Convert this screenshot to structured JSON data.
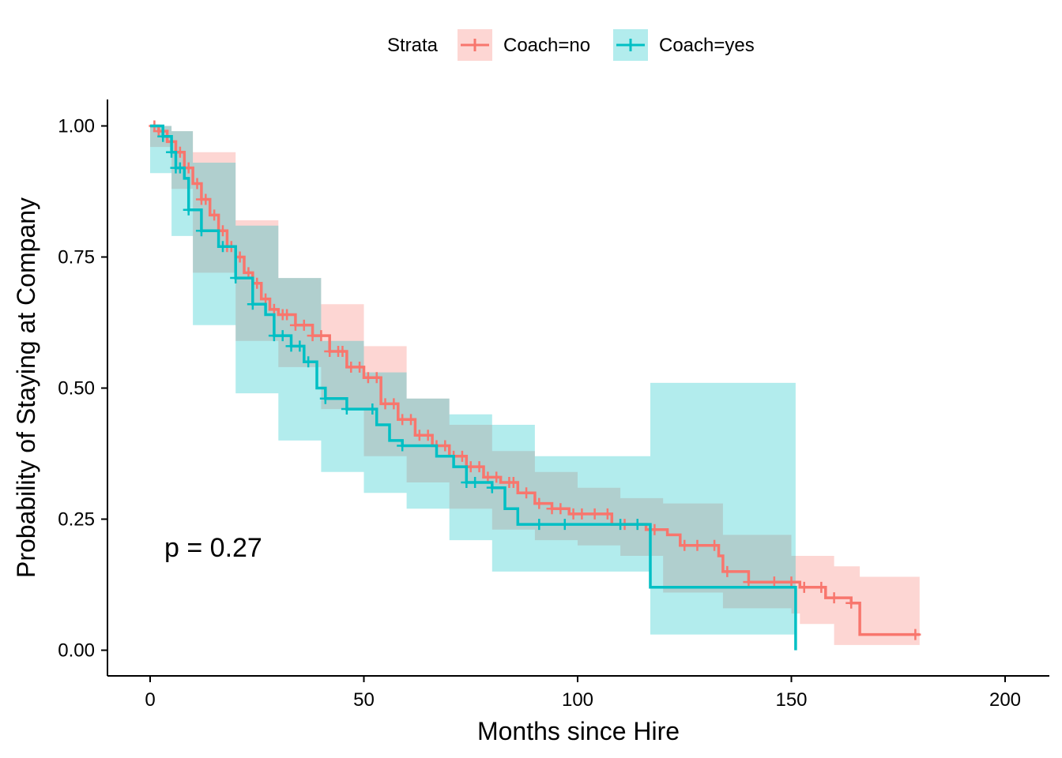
{
  "chart_data": {
    "type": "line",
    "xlabel": "Months since Hire",
    "ylabel": "Probability of Staying at Company",
    "xlim": [
      -10,
      210
    ],
    "ylim": [
      -0.05,
      1.05
    ],
    "x_ticks": [
      0,
      50,
      100,
      150,
      200
    ],
    "x_tick_labels": [
      "0",
      "50",
      "100",
      "150",
      "200"
    ],
    "y_ticks": [
      0,
      0.25,
      0.5,
      0.75,
      1
    ],
    "y_tick_labels": [
      "0.00",
      "0.25",
      "0.50",
      "0.75",
      "1.00"
    ],
    "grid": false,
    "legend": {
      "title": "Strata",
      "position": "top"
    },
    "annotation": "p = 0.27",
    "series": [
      {
        "name": "Coach=no",
        "color": "#F8766D",
        "band_color": "#F8766D",
        "steps": [
          [
            0,
            1.0
          ],
          [
            2,
            0.99
          ],
          [
            4,
            0.97
          ],
          [
            6,
            0.95
          ],
          [
            8,
            0.92
          ],
          [
            10,
            0.89
          ],
          [
            12,
            0.86
          ],
          [
            14,
            0.83
          ],
          [
            16,
            0.8
          ],
          [
            18,
            0.77
          ],
          [
            20,
            0.75
          ],
          [
            22,
            0.72
          ],
          [
            24,
            0.7
          ],
          [
            26,
            0.67
          ],
          [
            28,
            0.65
          ],
          [
            30,
            0.64
          ],
          [
            34,
            0.62
          ],
          [
            38,
            0.6
          ],
          [
            42,
            0.57
          ],
          [
            46,
            0.54
          ],
          [
            50,
            0.52
          ],
          [
            54,
            0.47
          ],
          [
            58,
            0.44
          ],
          [
            62,
            0.41
          ],
          [
            66,
            0.39
          ],
          [
            70,
            0.37
          ],
          [
            74,
            0.35
          ],
          [
            78,
            0.33
          ],
          [
            82,
            0.32
          ],
          [
            86,
            0.3
          ],
          [
            90,
            0.28
          ],
          [
            94,
            0.27
          ],
          [
            98,
            0.26
          ],
          [
            108,
            0.24
          ],
          [
            116,
            0.23
          ],
          [
            121,
            0.22
          ],
          [
            124,
            0.2
          ],
          [
            133,
            0.18
          ],
          [
            134,
            0.15
          ],
          [
            140,
            0.13
          ],
          [
            152,
            0.12
          ],
          [
            158,
            0.1
          ],
          [
            164,
            0.09
          ],
          [
            166,
            0.03
          ],
          [
            180,
            0.03
          ]
        ],
        "upper": [
          [
            0,
            1.0
          ],
          [
            5,
            0.99
          ],
          [
            10,
            0.95
          ],
          [
            20,
            0.82
          ],
          [
            30,
            0.71
          ],
          [
            40,
            0.66
          ],
          [
            50,
            0.58
          ],
          [
            60,
            0.48
          ],
          [
            70,
            0.43
          ],
          [
            80,
            0.38
          ],
          [
            90,
            0.34
          ],
          [
            100,
            0.31
          ],
          [
            110,
            0.29
          ],
          [
            120,
            0.28
          ],
          [
            134,
            0.22
          ],
          [
            150,
            0.18
          ],
          [
            152,
            0.18
          ],
          [
            160,
            0.16
          ],
          [
            166,
            0.14
          ],
          [
            180,
            0.14
          ]
        ],
        "lower": [
          [
            0,
            1.0
          ],
          [
            5,
            0.96
          ],
          [
            10,
            0.88
          ],
          [
            20,
            0.72
          ],
          [
            30,
            0.59
          ],
          [
            40,
            0.54
          ],
          [
            50,
            0.46
          ],
          [
            60,
            0.37
          ],
          [
            70,
            0.32
          ],
          [
            80,
            0.27
          ],
          [
            90,
            0.23
          ],
          [
            100,
            0.21
          ],
          [
            110,
            0.2
          ],
          [
            120,
            0.18
          ],
          [
            134,
            0.11
          ],
          [
            150,
            0.08
          ],
          [
            152,
            0.07
          ],
          [
            160,
            0.05
          ],
          [
            166,
            0.01
          ],
          [
            180,
            0.01
          ]
        ],
        "censor_x": [
          1,
          2,
          3,
          5,
          6,
          7,
          9,
          11,
          12,
          13,
          15,
          17,
          18,
          19,
          21,
          23,
          25,
          27,
          29,
          31,
          32,
          34,
          36,
          38,
          40,
          42,
          44,
          45,
          47,
          49,
          51,
          53,
          55,
          57,
          59,
          61,
          63,
          65,
          67,
          69,
          71,
          73,
          75,
          77,
          79,
          81,
          84,
          85,
          88,
          91,
          94,
          96,
          99,
          101,
          104,
          107,
          111,
          114,
          118,
          125,
          128,
          132,
          135,
          140,
          146,
          150,
          153,
          157,
          160,
          164,
          179
        ]
      },
      {
        "name": "Coach=yes",
        "color": "#00BFC4",
        "band_color": "#00BFC4",
        "steps": [
          [
            0,
            1.0
          ],
          [
            3,
            0.98
          ],
          [
            5,
            0.95
          ],
          [
            6,
            0.92
          ],
          [
            8,
            0.9
          ],
          [
            9,
            0.84
          ],
          [
            12,
            0.8
          ],
          [
            16,
            0.77
          ],
          [
            20,
            0.71
          ],
          [
            24,
            0.66
          ],
          [
            27,
            0.64
          ],
          [
            29,
            0.6
          ],
          [
            33,
            0.58
          ],
          [
            36,
            0.55
          ],
          [
            39,
            0.5
          ],
          [
            41,
            0.48
          ],
          [
            46,
            0.46
          ],
          [
            53,
            0.43
          ],
          [
            56,
            0.4
          ],
          [
            59,
            0.39
          ],
          [
            67,
            0.37
          ],
          [
            71,
            0.35
          ],
          [
            74,
            0.32
          ],
          [
            80,
            0.31
          ],
          [
            83,
            0.27
          ],
          [
            86,
            0.24
          ],
          [
            117,
            0.24
          ],
          [
            117,
            0.12
          ],
          [
            151,
            0.12
          ],
          [
            151,
            0.0
          ]
        ],
        "upper": [
          [
            0,
            1.0
          ],
          [
            5,
            0.99
          ],
          [
            10,
            0.93
          ],
          [
            20,
            0.81
          ],
          [
            30,
            0.71
          ],
          [
            40,
            0.59
          ],
          [
            50,
            0.53
          ],
          [
            60,
            0.48
          ],
          [
            70,
            0.45
          ],
          [
            80,
            0.43
          ],
          [
            90,
            0.37
          ],
          [
            117,
            0.37
          ],
          [
            117,
            0.51
          ],
          [
            151,
            0.51
          ]
        ],
        "lower": [
          [
            0,
            1.0
          ],
          [
            5,
            0.91
          ],
          [
            10,
            0.79
          ],
          [
            20,
            0.62
          ],
          [
            30,
            0.49
          ],
          [
            40,
            0.4
          ],
          [
            50,
            0.34
          ],
          [
            60,
            0.3
          ],
          [
            70,
            0.27
          ],
          [
            80,
            0.21
          ],
          [
            90,
            0.15
          ],
          [
            117,
            0.15
          ],
          [
            117,
            0.03
          ],
          [
            151,
            0.03
          ]
        ],
        "censor_x": [
          3,
          5,
          6,
          7,
          9,
          12,
          17,
          20,
          24,
          29,
          31,
          33,
          35,
          37,
          41,
          46,
          52,
          59,
          74,
          76,
          80,
          91,
          97,
          110,
          114
        ]
      }
    ]
  }
}
